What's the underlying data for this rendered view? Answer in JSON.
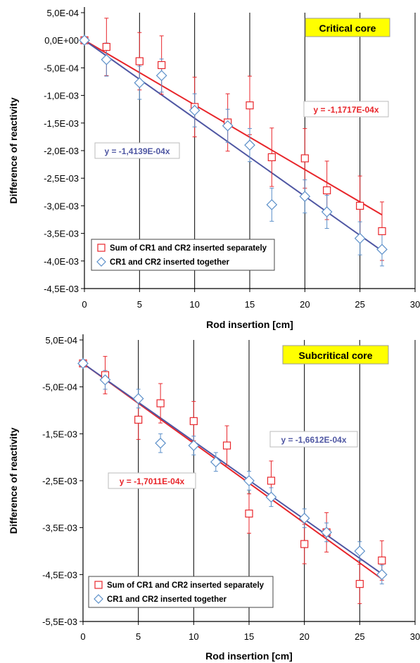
{
  "chart_data": [
    {
      "type": "scatter",
      "title": "Critical core",
      "xlabel": "Rod insertion [cm]",
      "ylabel": "Difference of reactivity",
      "xlim": [
        0,
        30
      ],
      "ylim": [
        -0.0045,
        0.0005
      ],
      "xticks": [
        0,
        5,
        10,
        15,
        20,
        25,
        30
      ],
      "xtick_labels": [
        "0",
        "5",
        "10",
        "15",
        "20",
        "25",
        "30"
      ],
      "yticks": [
        0.0005,
        0.0,
        -0.0005,
        -0.001,
        -0.0015,
        -0.002,
        -0.0025,
        -0.003,
        -0.0035,
        -0.004,
        -0.0045
      ],
      "ytick_labels": [
        "5,0E-04",
        "0,0E+00",
        "-5,0E-04",
        "-1,0E-03",
        "-1,5E-03",
        "-2,0E-03",
        "-2,5E-03",
        "-3,0E-03",
        "-3,5E-03",
        "-4,0E-03",
        "-4,5E-03"
      ],
      "grid": "vertical",
      "legend_position": "bottom-left",
      "colors": {
        "red": "#e8262b",
        "blue": "#4f57a3",
        "errbar_blue": "#5b8fc9",
        "badge": "#ffff00"
      },
      "series": [
        {
          "name": "Sum of CR1 and CR2 inserted separately",
          "marker": "square",
          "color": "#e8262b",
          "x": [
            0,
            2,
            5,
            7,
            10,
            13,
            15,
            17,
            20,
            22,
            25,
            27
          ],
          "y": [
            0.0,
            -0.00012,
            -0.00038,
            -0.00045,
            -0.00121,
            -0.00149,
            -0.00118,
            -0.00212,
            -0.00214,
            -0.00272,
            -0.003,
            -0.00346
          ],
          "err": [
            0.0,
            0.00052,
            0.00052,
            0.00053,
            0.00054,
            0.00052,
            0.00053,
            0.00053,
            0.00054,
            0.00053,
            0.00054,
            0.00053
          ],
          "trendline_label": "y = -1,1717E-04x",
          "slope": -0.00011717
        },
        {
          "name": "CR1 and CR2 inserted together",
          "marker": "diamond",
          "color": "#5b8fc9",
          "x": [
            0,
            2,
            5,
            7,
            10,
            13,
            15,
            17,
            20,
            22,
            25,
            27
          ],
          "y": [
            0.0,
            -0.00035,
            -0.00077,
            -0.00064,
            -0.00127,
            -0.00155,
            -0.0019,
            -0.00298,
            -0.00283,
            -0.00311,
            -0.00359,
            -0.00379
          ],
          "err": [
            0.0,
            0.0003,
            0.0003,
            0.0003,
            0.0003,
            0.0003,
            0.0003,
            0.0003,
            0.0003,
            0.0003,
            0.0003,
            0.0003
          ],
          "trendline_label": "y = -1,4139E-04x",
          "slope": -0.00014139
        }
      ]
    },
    {
      "type": "scatter",
      "title": "Subcritical core",
      "xlabel": "Rod insertion [cm]",
      "ylabel": "Difference of reactivity",
      "xlim": [
        0,
        30
      ],
      "ylim": [
        -0.0055,
        0.0005
      ],
      "xticks": [
        0,
        5,
        10,
        15,
        20,
        25,
        30
      ],
      "xtick_labels": [
        "0",
        "5",
        "10",
        "15",
        "20",
        "25",
        "30"
      ],
      "yticks": [
        0.0005,
        -0.0005,
        -0.0015,
        -0.0025,
        -0.0035,
        -0.0045,
        -0.0055
      ],
      "ytick_labels": [
        "5,0E-04",
        "-5,0E-04",
        "-1,5E-03",
        "-2,5E-03",
        "-3,5E-03",
        "-4,5E-03",
        "-5,5E-03"
      ],
      "grid": "vertical",
      "legend_position": "bottom-left",
      "colors": {
        "red": "#e8262b",
        "blue": "#4f57a3",
        "errbar_blue": "#5b8fc9",
        "badge": "#ffff00"
      },
      "series": [
        {
          "name": "Sum of CR1 and CR2 inserted separately",
          "marker": "square",
          "color": "#e8262b",
          "x": [
            0,
            2,
            5,
            7,
            10,
            13,
            15,
            17,
            20,
            22,
            25,
            27
          ],
          "y": [
            0.0,
            -0.00025,
            -0.0012,
            -0.00085,
            -0.00123,
            -0.00175,
            -0.0032,
            -0.0025,
            -0.00385,
            -0.0036,
            -0.0047,
            -0.0042
          ],
          "err": [
            0.0,
            0.0004,
            0.00042,
            0.00042,
            0.00042,
            0.00042,
            0.00042,
            0.00042,
            0.00042,
            0.00042,
            0.00042,
            0.00042
          ],
          "trendline_label": "y = -1,7011E-04x",
          "slope": -0.00017011
        },
        {
          "name": "CR1 and CR2 inserted together",
          "marker": "diamond",
          "color": "#5b8fc9",
          "x": [
            0,
            2,
            5,
            7,
            10,
            12,
            15,
            17,
            20,
            22,
            25,
            27
          ],
          "y": [
            0.0,
            -0.00035,
            -0.00075,
            -0.0017,
            -0.00175,
            -0.0021,
            -0.0025,
            -0.00285,
            -0.0033,
            -0.0036,
            -0.004,
            -0.0045
          ],
          "err": [
            0.0,
            0.0002,
            0.0002,
            0.0002,
            0.0002,
            0.0002,
            0.0002,
            0.0002,
            0.0002,
            0.0002,
            0.0002,
            0.0002
          ],
          "trendline_label": "y = -1,6612E-04x",
          "slope": -0.00016612
        }
      ]
    }
  ]
}
